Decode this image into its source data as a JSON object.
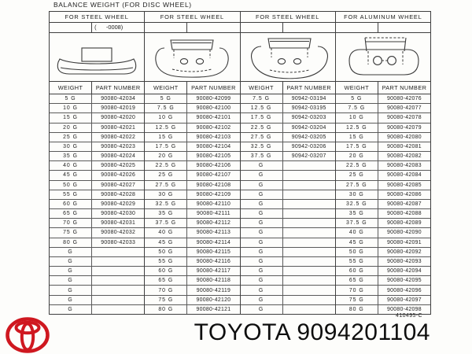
{
  "title": "BALANCE WEIGHT (FOR DISC WHEEL)",
  "doc_code": "410495-C",
  "footer_text": "TOYOTA 9094201104",
  "brand_color": "#cf1820",
  "line_color": "#3f3f3f",
  "columns": {
    "weight_label": "WEIGHT",
    "part_number_label": "PART NUMBER"
  },
  "groups": [
    {
      "header": "FOR STEEL WHEEL",
      "sub": "(      -0008)",
      "icon": "clip-weight-side-view-icon",
      "rows": [
        [
          "5 G",
          "90080-42034"
        ],
        [
          "10 G",
          "90080-42019"
        ],
        [
          "15 G",
          "90080-42020"
        ],
        [
          "20 G",
          "90080-42021"
        ],
        [
          "25 G",
          "90080-42022"
        ],
        [
          "30 G",
          "90080-42023"
        ],
        [
          "35 G",
          "90080-42024"
        ],
        [
          "40 G",
          "90080-42025"
        ],
        [
          "45 G",
          "90080-42026"
        ],
        [
          "50 G",
          "90080-42027"
        ],
        [
          "55 G",
          "90080-42028"
        ],
        [
          "60 G",
          "90080-42029"
        ],
        [
          "65 G",
          "90080-42030"
        ],
        [
          "70 G",
          "90080-42031"
        ],
        [
          "75 G",
          "90080-42032"
        ],
        [
          "80 G",
          "90080-42033"
        ],
        [
          "G",
          ""
        ],
        [
          "G",
          ""
        ],
        [
          "G",
          ""
        ],
        [
          "G",
          ""
        ],
        [
          "G",
          ""
        ],
        [
          "G",
          ""
        ],
        [
          "G",
          ""
        ]
      ]
    },
    {
      "header": "FOR STEEL WHEEL",
      "sub": "",
      "icon": "clip-weight-front-view-icon",
      "rows": [
        [
          "5 G",
          "90080-42099"
        ],
        [
          "7.5 G",
          "90080-42100"
        ],
        [
          "10 G",
          "90080-42101"
        ],
        [
          "12.5 G",
          "90080-42102"
        ],
        [
          "15 G",
          "90080-42103"
        ],
        [
          "17.5 G",
          "90080-42104"
        ],
        [
          "20 G",
          "90080-42105"
        ],
        [
          "22.5 G",
          "90080-42106"
        ],
        [
          "25 G",
          "90080-42107"
        ],
        [
          "27.5 G",
          "90080-42108"
        ],
        [
          "30 G",
          "90080-42109"
        ],
        [
          "32.5 G",
          "90080-42110"
        ],
        [
          "35 G",
          "90080-42111"
        ],
        [
          "37.5 G",
          "90080-42112"
        ],
        [
          "40 G",
          "90080-42113"
        ],
        [
          "45 G",
          "90080-42114"
        ],
        [
          "50 G",
          "90080-42115"
        ],
        [
          "55 G",
          "90080-42116"
        ],
        [
          "60 G",
          "90080-42117"
        ],
        [
          "65 G",
          "90080-42118"
        ],
        [
          "70 G",
          "90080-42119"
        ],
        [
          "75 G",
          "90080-42120"
        ],
        [
          "80 G",
          "90080-42121"
        ]
      ]
    },
    {
      "header": "FOR STEEL WHEEL",
      "sub": "",
      "icon": "clip-weight-front-view-icon",
      "rows": [
        [
          "7.5 G",
          "90942-03194"
        ],
        [
          "12.5 G",
          "90942-03195"
        ],
        [
          "17.5 G",
          "90942-03203"
        ],
        [
          "22.5 G",
          "90942-03204"
        ],
        [
          "27.5 G",
          "90942-03205"
        ],
        [
          "32.5 G",
          "90942-03206"
        ],
        [
          "37.5 G",
          "90942-03207"
        ],
        [
          "G",
          ""
        ],
        [
          "G",
          ""
        ],
        [
          "G",
          ""
        ],
        [
          "G",
          ""
        ],
        [
          "G",
          ""
        ],
        [
          "G",
          ""
        ],
        [
          "G",
          ""
        ],
        [
          "G",
          ""
        ],
        [
          "G",
          ""
        ],
        [
          "G",
          ""
        ],
        [
          "G",
          ""
        ],
        [
          "G",
          ""
        ],
        [
          "G",
          ""
        ],
        [
          "G",
          ""
        ],
        [
          "G",
          ""
        ],
        [
          "G",
          ""
        ]
      ]
    },
    {
      "header": "FOR ALUMINUM WHEEL",
      "sub": "",
      "icon": "aluminum-clip-weight-icon",
      "rows": [
        [
          "5 G",
          "90080-42076"
        ],
        [
          "7.5 G",
          "90080-42077"
        ],
        [
          "10 G",
          "90080-42078"
        ],
        [
          "12.5 G",
          "90080-42079"
        ],
        [
          "15 G",
          "90080-42080"
        ],
        [
          "17.5 G",
          "90080-42081"
        ],
        [
          "20 G",
          "90080-42082"
        ],
        [
          "22.5 G",
          "90080-42083"
        ],
        [
          "25 G",
          "90080-42084"
        ],
        [
          "27.5 G",
          "90080-42085"
        ],
        [
          "30 G",
          "90080-42086"
        ],
        [
          "32.5 G",
          "90080-42087"
        ],
        [
          "35 G",
          "90080-42088"
        ],
        [
          "37.5 G",
          "90080-42089"
        ],
        [
          "40 G",
          "90080-42090"
        ],
        [
          "45 G",
          "90080-42091"
        ],
        [
          "50 G",
          "90080-42092"
        ],
        [
          "55 G",
          "90080-42093"
        ],
        [
          "60 G",
          "90080-42094"
        ],
        [
          "65 G",
          "90080-42095"
        ],
        [
          "70 G",
          "90080-42096"
        ],
        [
          "75 G",
          "90080-42097"
        ],
        [
          "80 G",
          "90080-42098"
        ]
      ]
    }
  ]
}
